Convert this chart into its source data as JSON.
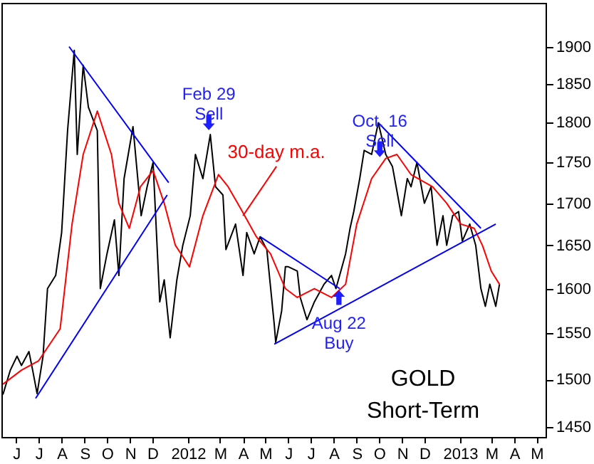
{
  "chart_data": {
    "type": "line",
    "log": "y",
    "xlim": [
      "2011-05-26",
      "2013-05-27"
    ],
    "ylim": [
      1440,
      1960
    ],
    "yticks": [
      1450,
      1500,
      1550,
      1600,
      1650,
      1700,
      1750,
      1800,
      1850,
      1900
    ],
    "xticks": [
      {
        "value": "2011-06-15",
        "label": "J"
      },
      {
        "value": "2011-07-15",
        "label": "J"
      },
      {
        "value": "2011-08-15",
        "label": "A"
      },
      {
        "value": "2011-09-15",
        "label": "S"
      },
      {
        "value": "2011-10-15",
        "label": "O"
      },
      {
        "value": "2011-11-15",
        "label": "N"
      },
      {
        "value": "2011-12-15",
        "label": "D"
      },
      {
        "value": "2012-02-01",
        "label": "2012"
      },
      {
        "value": "2012-03-15",
        "label": "M"
      },
      {
        "value": "2012-04-15",
        "label": "A"
      },
      {
        "value": "2012-05-15",
        "label": "M"
      },
      {
        "value": "2012-06-15",
        "label": "J"
      },
      {
        "value": "2012-07-15",
        "label": "J"
      },
      {
        "value": "2012-08-15",
        "label": "A"
      },
      {
        "value": "2012-09-15",
        "label": "S"
      },
      {
        "value": "2012-10-15",
        "label": "O"
      },
      {
        "value": "2012-11-15",
        "label": "N"
      },
      {
        "value": "2012-12-15",
        "label": "D"
      },
      {
        "value": "2013-02-01",
        "label": "2013"
      },
      {
        "value": "2013-03-15",
        "label": "M"
      },
      {
        "value": "2013-04-15",
        "label": "A"
      },
      {
        "value": "2013-05-15",
        "label": "M"
      }
    ],
    "series": [
      {
        "color": "#000000",
        "x": [
          "2011-05-28",
          "2011-06-07",
          "2011-06-16",
          "2011-06-22",
          "2011-07-02",
          "2011-07-07",
          "2011-07-13",
          "2011-07-21",
          "2011-07-27",
          "2011-08-07",
          "2011-08-15",
          "2011-08-23",
          "2011-09-01",
          "2011-09-05",
          "2011-09-13",
          "2011-09-20",
          "2011-10-02",
          "2011-10-06",
          "2011-10-15",
          "2011-10-25",
          "2011-10-31",
          "2011-11-07",
          "2011-11-19",
          "2011-11-30",
          "2011-12-08",
          "2011-12-16",
          "2011-12-25",
          "2011-12-31",
          "2012-01-08",
          "2012-01-17",
          "2012-01-25",
          "2012-02-04",
          "2012-02-11",
          "2012-02-21",
          "2012-03-02",
          "2012-03-09",
          "2012-03-19",
          "2012-03-23",
          "2012-04-05",
          "2012-04-15",
          "2012-04-20",
          "2012-04-30",
          "2012-05-08",
          "2012-05-17",
          "2012-05-27",
          "2012-05-29",
          "2012-06-06",
          "2012-06-11",
          "2012-06-15",
          "2012-06-27",
          "2012-07-01",
          "2012-07-10",
          "2012-07-20",
          "2012-08-02",
          "2012-08-12",
          "2012-08-18",
          "2012-08-23",
          "2012-08-31",
          "2012-09-06",
          "2012-09-11",
          "2012-09-19",
          "2012-09-25",
          "2012-10-05",
          "2012-10-14",
          "2012-10-24",
          "2012-11-02",
          "2012-11-08",
          "2012-11-14",
          "2012-11-22",
          "2012-11-27",
          "2012-12-05",
          "2012-12-15",
          "2012-12-24",
          "2013-01-01",
          "2013-01-09",
          "2013-01-14",
          "2013-01-22",
          "2013-01-30",
          "2013-02-04",
          "2013-02-14",
          "2013-02-22",
          "2013-03-01",
          "2013-03-07",
          "2013-03-13",
          "2013-03-21",
          "2013-03-26"
        ],
        "values": [
          1484,
          1510,
          1525,
          1515,
          1530,
          1510,
          1485,
          1525,
          1600,
          1615,
          1665,
          1790,
          1895,
          1760,
          1875,
          1820,
          1790,
          1600,
          1640,
          1680,
          1615,
          1730,
          1795,
          1685,
          1720,
          1750,
          1585,
          1610,
          1545,
          1610,
          1650,
          1685,
          1760,
          1730,
          1785,
          1720,
          1710,
          1645,
          1675,
          1615,
          1665,
          1640,
          1660,
          1645,
          1560,
          1540,
          1575,
          1625,
          1625,
          1620,
          1590,
          1565,
          1585,
          1605,
          1615,
          1600,
          1615,
          1640,
          1670,
          1690,
          1730,
          1765,
          1760,
          1800,
          1760,
          1745,
          1715,
          1685,
          1730,
          1720,
          1750,
          1700,
          1720,
          1650,
          1685,
          1650,
          1685,
          1690,
          1655,
          1675,
          1650,
          1600,
          1580,
          1605,
          1580,
          1605
        ]
      },
      {
        "color": "#ff0000",
        "x": [
          "2011-05-28",
          "2011-06-22",
          "2011-07-15",
          "2011-08-13",
          "2011-08-29",
          "2011-09-13",
          "2011-10-02",
          "2011-10-21",
          "2011-10-31",
          "2011-11-14",
          "2011-11-29",
          "2011-12-16",
          "2011-12-31",
          "2012-01-15",
          "2012-02-03",
          "2012-02-21",
          "2012-03-13",
          "2012-03-26",
          "2012-04-11",
          "2012-05-03",
          "2012-05-22",
          "2012-06-11",
          "2012-06-27",
          "2012-07-20",
          "2012-08-12",
          "2012-08-31",
          "2012-09-15",
          "2012-10-05",
          "2012-10-24",
          "2012-11-08",
          "2012-11-27",
          "2012-12-26",
          "2013-01-14",
          "2013-02-02",
          "2013-02-20",
          "2013-03-03",
          "2013-03-15",
          "2013-03-26"
        ],
        "values": [
          1495,
          1510,
          1520,
          1555,
          1675,
          1760,
          1815,
          1760,
          1700,
          1670,
          1720,
          1740,
          1700,
          1650,
          1625,
          1685,
          1735,
          1720,
          1695,
          1660,
          1640,
          1600,
          1590,
          1600,
          1590,
          1605,
          1675,
          1730,
          1755,
          1760,
          1735,
          1720,
          1700,
          1675,
          1670,
          1650,
          1620,
          1605
        ]
      },
      {
        "color": "#0000ff",
        "x": [
          "2011-08-25",
          "2012-01-06"
        ],
        "values": [
          1900,
          1725
        ]
      },
      {
        "color": "#0000ff",
        "x": [
          "2011-07-11",
          "2012-01-04"
        ],
        "values": [
          1480,
          1710
        ]
      },
      {
        "color": "#0000ff",
        "x": [
          "2012-05-08",
          "2012-08-23"
        ],
        "values": [
          1660,
          1600
        ]
      },
      {
        "color": "#0000ff",
        "x": [
          "2012-05-27",
          "2013-03-21"
        ],
        "values": [
          1538,
          1675
        ]
      },
      {
        "color": "#0000ff",
        "x": [
          "2012-10-14",
          "2013-03-01"
        ],
        "values": [
          1800,
          1670
        ]
      }
    ],
    "annotations": [
      {
        "text": "Feb 29\nSell",
        "x": "2012-02-29",
        "y": 1800
      },
      {
        "text": "30-day m.a.",
        "x": "2012-04-15",
        "y": 1685
      },
      {
        "text": "Oct. 16\nSell",
        "x": "2012-10-16",
        "y": 1766
      },
      {
        "text": "Aug 22\nBuy",
        "x": "2012-08-22",
        "y": 1590
      },
      "GOLD",
      "Short-Term"
    ]
  }
}
